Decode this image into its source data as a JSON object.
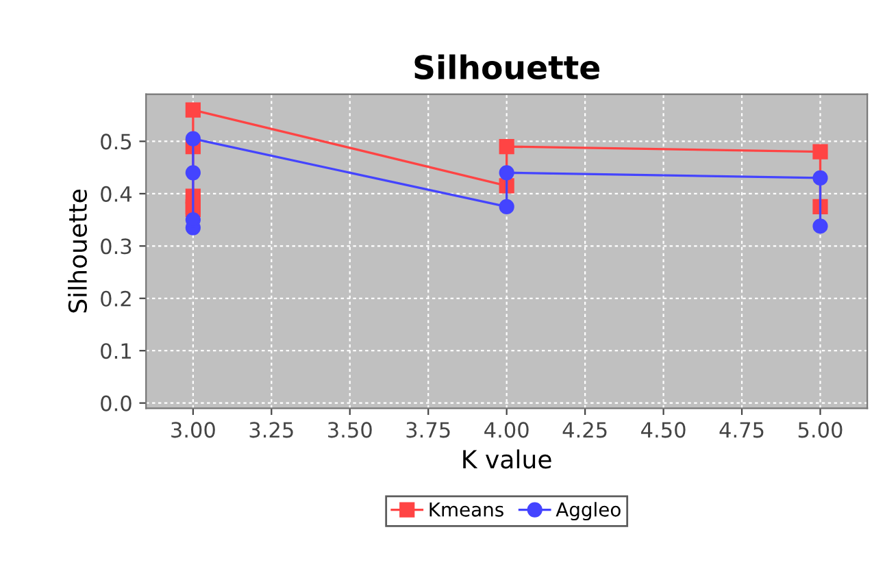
{
  "chart_data": {
    "type": "line",
    "title": "Silhouette",
    "xlabel": "K value",
    "ylabel": "Silhouette",
    "xlim": [
      2.85,
      5.15
    ],
    "xticks": [
      {
        "value": 3,
        "label": "3.00"
      },
      {
        "value": 3.25,
        "label": "3.25"
      },
      {
        "value": 3.5,
        "label": "3.50"
      },
      {
        "value": 3.75,
        "label": "3.75"
      },
      {
        "value": 4,
        "label": "4.00"
      },
      {
        "value": 4.25,
        "label": "4.25"
      },
      {
        "value": 4.5,
        "label": "4.50"
      },
      {
        "value": 4.75,
        "label": "4.75"
      },
      {
        "value": 5,
        "label": "5.00"
      }
    ],
    "ylim": [
      -0.01,
      0.59
    ],
    "yticks": [
      {
        "value": 0,
        "label": "0.0"
      },
      {
        "value": 0.1,
        "label": "0.1"
      },
      {
        "value": 0.2,
        "label": "0.2"
      },
      {
        "value": 0.3,
        "label": "0.3"
      },
      {
        "value": 0.4,
        "label": "0.4"
      },
      {
        "value": 0.5,
        "label": "0.5"
      }
    ],
    "grid": true,
    "legend": "bottom",
    "series": [
      {
        "name": "Kmeans",
        "color": "#ff4444",
        "marker": "square",
        "x": [
          3,
          3,
          3,
          3,
          3,
          4,
          4,
          5,
          5
        ],
        "values": [
          0.375,
          0.37,
          0.395,
          0.49,
          0.56,
          0.415,
          0.49,
          0.48,
          0.375
        ]
      },
      {
        "name": "Aggleo",
        "color": "#4444ff",
        "marker": "circle",
        "x": [
          3,
          3,
          3,
          3,
          4,
          4,
          5,
          5
        ],
        "values": [
          0.335,
          0.35,
          0.44,
          0.505,
          0.375,
          0.44,
          0.43,
          0.338
        ]
      }
    ]
  }
}
